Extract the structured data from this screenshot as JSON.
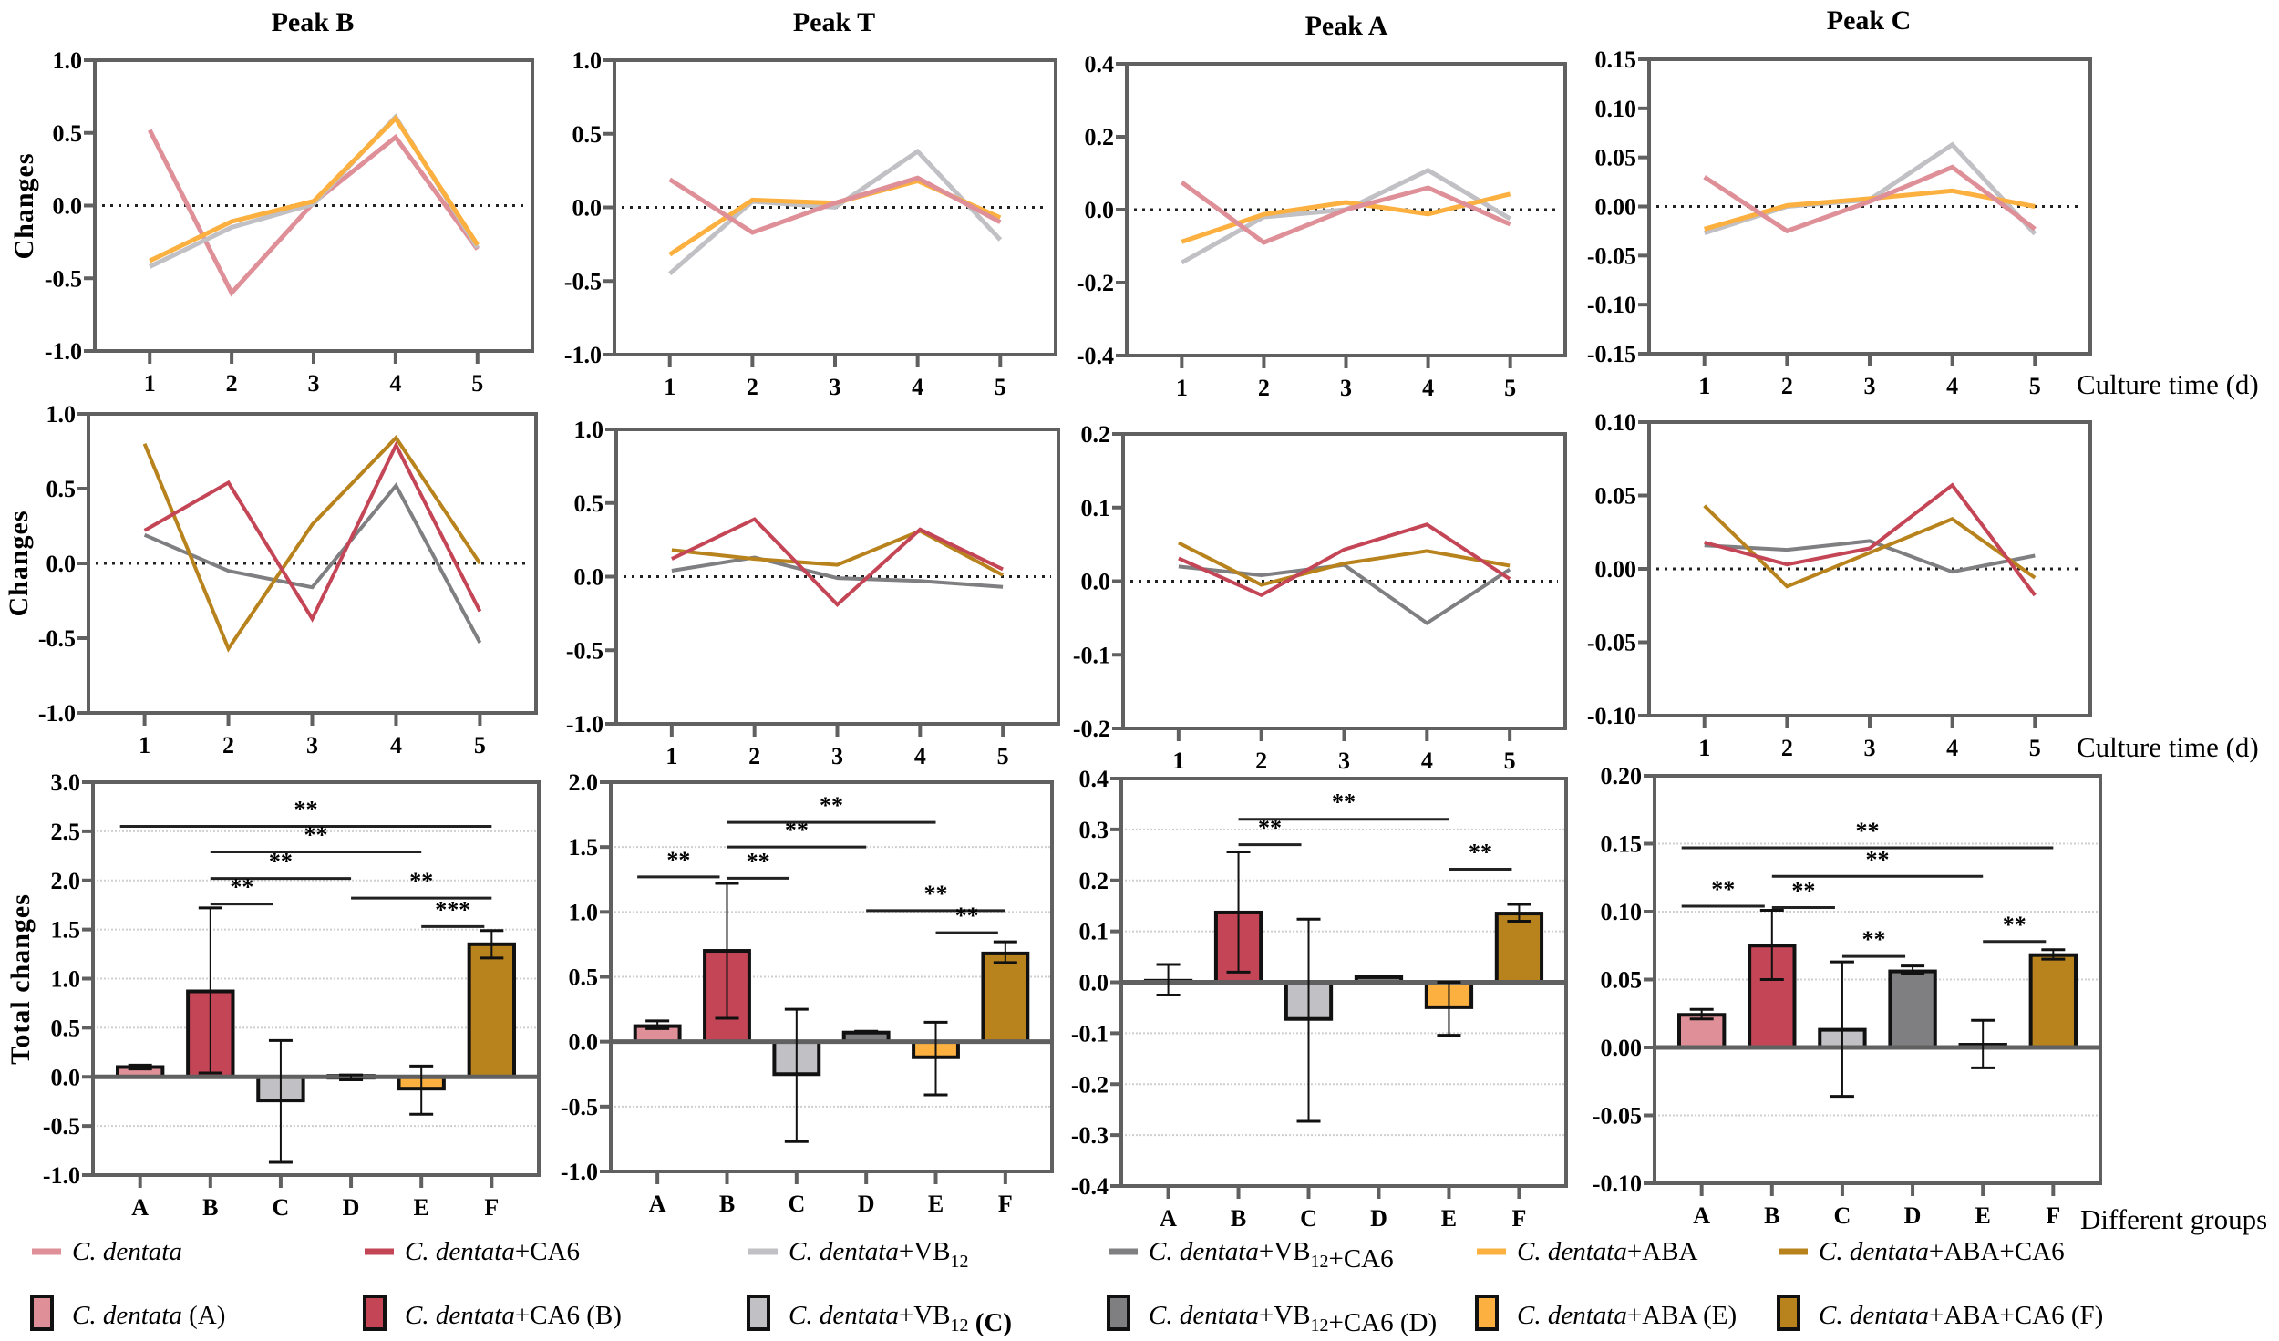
{
  "colors": {
    "C. dentata": "#DE8F97",
    "C. dentata+CA6": "#C44556",
    "C. dentata+VB12": "#C0C0C5",
    "C. dentata+VB12+CA6": "#7F7F82",
    "C. dentata+ABA": "#FBB040",
    "C. dentata+ABA+CA6": "#B8821C",
    "axis": "#606060"
  },
  "labels": {
    "peak_titles": [
      "Peak B",
      "Peak T",
      "Peak A",
      "Peak C"
    ],
    "changes": "Changes",
    "total_changes": "Total changes",
    "culture_time": "Culture time (d)",
    "different_groups": "Different groups"
  },
  "legend": {
    "lines": [
      {
        "italic": "C. dentata",
        "parts": [],
        "color": "#DE8F97"
      },
      {
        "italic": "C. dentata",
        "parts": [
          [
            "+CA6",
            ""
          ]
        ],
        "color": "#C44556"
      },
      {
        "italic": "C. dentata",
        "parts": [
          [
            "+VB",
            "12"
          ]
        ],
        "color": "#C0C0C5"
      },
      {
        "italic": "C. dentata",
        "parts": [
          [
            "+VB",
            "12"
          ],
          [
            "+CA6",
            ""
          ]
        ],
        "color": "#7F7F82"
      },
      {
        "italic": "C. dentata",
        "parts": [
          [
            "+ABA",
            ""
          ]
        ],
        "color": "#FBB040"
      },
      {
        "italic": "C. dentata",
        "parts": [
          [
            "+ABA+CA6",
            ""
          ]
        ],
        "color": "#B8821C"
      }
    ],
    "bars": [
      {
        "italic": "C. dentata",
        "parts": [
          [
            " (A)",
            ""
          ]
        ],
        "color": "#DE8F97"
      },
      {
        "italic": "C. dentata",
        "parts": [
          [
            "+CA6 (B)",
            ""
          ]
        ],
        "color": "#C44556"
      },
      {
        "italic": "C. dentata",
        "parts": [
          [
            "+VB",
            "12"
          ],
          [
            " (C)",
            ""
          ]
        ],
        "color": "#C0C0C5",
        "bold_suffix": true
      },
      {
        "italic": "C. dentata",
        "parts": [
          [
            "+VB",
            "12"
          ],
          [
            "+CA6 (D)",
            ""
          ]
        ],
        "color": "#7F7F82"
      },
      {
        "italic": "C. dentata",
        "parts": [
          [
            "+ABA (E)",
            ""
          ]
        ],
        "color": "#FBB040"
      },
      {
        "italic": "C. dentata",
        "parts": [
          [
            "+ABA+CA6 (F)",
            ""
          ]
        ],
        "color": "#B8821C"
      }
    ]
  },
  "chart_data": [
    {
      "type": "line",
      "title": "Peak B",
      "ylabel": "Changes",
      "x": [
        1,
        2,
        3,
        4,
        5
      ],
      "ylim": [
        -1,
        1
      ],
      "yticks": [
        "-1.0",
        "-0.5",
        "0.0",
        "0.5",
        "1.0"
      ],
      "ytick_values": [
        -1,
        -0.5,
        0,
        0.5,
        1
      ],
      "series": [
        {
          "name": "C. dentata",
          "color": "#DE8F97",
          "values": [
            0.52,
            -0.6,
            0.02,
            0.47,
            -0.3
          ]
        },
        {
          "name": "C. dentata+VB12",
          "color": "#C0C0C5",
          "values": [
            -0.42,
            -0.15,
            0.01,
            0.61,
            -0.29
          ]
        },
        {
          "name": "C. dentata+ABA",
          "color": "#FBB040",
          "values": [
            -0.38,
            -0.11,
            0.03,
            0.6,
            -0.27
          ]
        }
      ]
    },
    {
      "type": "line",
      "title": "Peak T",
      "x": [
        1,
        2,
        3,
        4,
        5
      ],
      "ylim": [
        -1,
        1
      ],
      "yticks": [
        "-1.0",
        "-0.5",
        "0.0",
        "0.5",
        "1.0"
      ],
      "ytick_values": [
        -1,
        -0.5,
        0,
        0.5,
        1
      ],
      "series": [
        {
          "name": "C. dentata+VB12",
          "color": "#C0C0C5",
          "values": [
            -0.45,
            0.04,
            0.0,
            0.38,
            -0.22
          ]
        },
        {
          "name": "C. dentata+ABA",
          "color": "#FBB040",
          "values": [
            -0.32,
            0.05,
            0.03,
            0.18,
            -0.07
          ]
        },
        {
          "name": "C. dentata",
          "color": "#DE8F97",
          "values": [
            0.19,
            -0.17,
            0.03,
            0.2,
            -0.1
          ]
        }
      ]
    },
    {
      "type": "line",
      "title": "Peak A",
      "x": [
        1,
        2,
        3,
        4,
        5
      ],
      "ylim": [
        -0.4,
        0.4
      ],
      "yticks": [
        "-0.4",
        "-0.2",
        "0.0",
        "0.2",
        "0.4"
      ],
      "ytick_values": [
        -0.4,
        -0.2,
        0,
        0.2,
        0.4
      ],
      "series": [
        {
          "name": "C. dentata+VB12",
          "color": "#C0C0C5",
          "values": [
            -0.145,
            -0.02,
            0.0,
            0.108,
            -0.025
          ]
        },
        {
          "name": "C. dentata+ABA",
          "color": "#FBB040",
          "values": [
            -0.088,
            -0.013,
            0.02,
            -0.012,
            0.043
          ]
        },
        {
          "name": "C. dentata",
          "color": "#DE8F97",
          "values": [
            0.075,
            -0.09,
            0.0,
            0.06,
            -0.04
          ]
        }
      ]
    },
    {
      "type": "line",
      "title": "Peak C",
      "xlabel": "Culture time (d)",
      "x": [
        1,
        2,
        3,
        4,
        5
      ],
      "ylim": [
        -0.15,
        0.15
      ],
      "yticks": [
        "-0.15",
        "-0.10",
        "-0.05",
        "0.00",
        "0.05",
        "0.10",
        "0.15"
      ],
      "ytick_values": [
        -0.15,
        -0.1,
        -0.05,
        0,
        0.05,
        0.1,
        0.15
      ],
      "series": [
        {
          "name": "C. dentata+VB12",
          "color": "#C0C0C5",
          "values": [
            -0.027,
            0.0,
            0.007,
            0.063,
            -0.028
          ]
        },
        {
          "name": "C. dentata+ABA",
          "color": "#FBB040",
          "values": [
            -0.023,
            0.001,
            0.008,
            0.016,
            0.0
          ]
        },
        {
          "name": "C. dentata",
          "color": "#DE8F97",
          "values": [
            0.03,
            -0.025,
            0.005,
            0.04,
            -0.023
          ]
        }
      ]
    },
    {
      "type": "line",
      "ylabel": "Changes",
      "x": [
        1,
        2,
        3,
        4,
        5
      ],
      "ylim": [
        -1,
        1
      ],
      "yticks": [
        "-1.0",
        "-0.5",
        "0.0",
        "0.5",
        "1.0"
      ],
      "ytick_values": [
        -1,
        -0.5,
        0,
        0.5,
        1
      ],
      "series": [
        {
          "name": "C. dentata+VB12+CA6",
          "color": "#7F7F82",
          "values": [
            0.19,
            -0.05,
            -0.16,
            0.52,
            -0.53
          ]
        },
        {
          "name": "C. dentata+ABA+CA6",
          "color": "#B8821C",
          "values": [
            0.8,
            -0.57,
            0.26,
            0.84,
            0.0
          ]
        },
        {
          "name": "C. dentata+CA6",
          "color": "#C44556",
          "values": [
            0.22,
            0.54,
            -0.37,
            0.79,
            -0.32
          ]
        }
      ]
    },
    {
      "type": "line",
      "x": [
        1,
        2,
        3,
        4,
        5
      ],
      "ylim": [
        -1,
        1
      ],
      "yticks": [
        "-1.0",
        "-0.5",
        "0.0",
        "0.5",
        "1.0"
      ],
      "ytick_values": [
        -1,
        -0.5,
        0,
        0.5,
        1
      ],
      "series": [
        {
          "name": "C. dentata+VB12+CA6",
          "color": "#7F7F82",
          "values": [
            0.04,
            0.13,
            -0.01,
            -0.03,
            -0.07
          ]
        },
        {
          "name": "C. dentata+ABA+CA6",
          "color": "#B8821C",
          "values": [
            0.18,
            0.12,
            0.08,
            0.31,
            0.01
          ]
        },
        {
          "name": "C. dentata+CA6",
          "color": "#C44556",
          "values": [
            0.12,
            0.39,
            -0.19,
            0.32,
            0.05
          ]
        }
      ]
    },
    {
      "type": "line",
      "x": [
        1,
        2,
        3,
        4,
        5
      ],
      "ylim": [
        -0.2,
        0.2
      ],
      "yticks": [
        "-0.2",
        "-0.1",
        "0.0",
        "0.1",
        "0.2"
      ],
      "ytick_values": [
        -0.2,
        -0.1,
        0,
        0.1,
        0.2
      ],
      "series": [
        {
          "name": "C. dentata+VB12+CA6",
          "color": "#7F7F82",
          "values": [
            0.02,
            0.008,
            0.022,
            -0.057,
            0.016
          ]
        },
        {
          "name": "C. dentata+ABA+CA6",
          "color": "#B8821C",
          "values": [
            0.052,
            -0.005,
            0.024,
            0.041,
            0.021
          ]
        },
        {
          "name": "C. dentata+CA6",
          "color": "#C44556",
          "values": [
            0.031,
            -0.019,
            0.043,
            0.077,
            0.003
          ]
        }
      ]
    },
    {
      "type": "line",
      "xlabel": "Culture time (d)",
      "x": [
        1,
        2,
        3,
        4,
        5
      ],
      "ylim": [
        -0.1,
        0.1
      ],
      "yticks": [
        "-0.10",
        "-0.05",
        "0.00",
        "0.05",
        "0.10"
      ],
      "ytick_values": [
        -0.1,
        -0.05,
        0,
        0.05,
        0.1
      ],
      "series": [
        {
          "name": "C. dentata+VB12+CA6",
          "color": "#7F7F82",
          "values": [
            0.016,
            0.013,
            0.019,
            -0.002,
            0.009
          ]
        },
        {
          "name": "C. dentata+ABA+CA6",
          "color": "#B8821C",
          "values": [
            0.043,
            -0.012,
            0.011,
            0.034,
            -0.006
          ]
        },
        {
          "name": "C. dentata+CA6",
          "color": "#C44556",
          "values": [
            0.018,
            0.003,
            0.014,
            0.057,
            -0.018
          ]
        }
      ]
    },
    {
      "type": "bar",
      "ylabel": "Total changes",
      "categories": [
        "A",
        "B",
        "C",
        "D",
        "E",
        "F"
      ],
      "ylim": [
        -1,
        3
      ],
      "yticks": [
        "-1.0",
        "-0.5",
        "0.0",
        "0.5",
        "1.0",
        "1.5",
        "2.0",
        "2.5",
        "3.0"
      ],
      "ytick_values": [
        -1,
        -0.5,
        0,
        0.5,
        1,
        1.5,
        2,
        2.5,
        3
      ],
      "values": [
        0.1,
        0.87,
        -0.24,
        0.01,
        -0.12,
        1.35
      ],
      "error_low": [
        0.08,
        0.04,
        -0.87,
        -0.03,
        -0.38,
        1.21
      ],
      "error_high": [
        0.12,
        1.72,
        0.37,
        0.02,
        0.11,
        1.49
      ],
      "significance": [
        {
          "from": "A",
          "to": "F",
          "y": 2.55,
          "label": "**"
        },
        {
          "from": "B",
          "to": "E",
          "y": 2.29,
          "label": "**"
        },
        {
          "from": "B",
          "to": "D",
          "y": 2.02,
          "label": "**"
        },
        {
          "from": "B",
          "to": "C",
          "y": 1.76,
          "label": "**"
        },
        {
          "from": "D",
          "to": "F",
          "y": 1.82,
          "label": "**"
        },
        {
          "from": "E",
          "to": "F",
          "y": 1.53,
          "label": "***"
        }
      ]
    },
    {
      "type": "bar",
      "categories": [
        "A",
        "B",
        "C",
        "D",
        "E",
        "F"
      ],
      "ylim": [
        -1,
        2
      ],
      "yticks": [
        "-1.0",
        "-0.5",
        "0.0",
        "0.5",
        "1.0",
        "1.5",
        "2.0"
      ],
      "ytick_values": [
        -1,
        -0.5,
        0,
        0.5,
        1,
        1.5,
        2
      ],
      "values": [
        0.12,
        0.7,
        -0.25,
        0.07,
        -0.12,
        0.68
      ],
      "error_low": [
        0.1,
        0.18,
        -0.77,
        0.07,
        -0.41,
        0.61
      ],
      "error_high": [
        0.16,
        1.22,
        0.25,
        0.08,
        0.15,
        0.77
      ],
      "significance": [
        {
          "from": "A",
          "to": "B",
          "y": 1.27,
          "label": "**"
        },
        {
          "from": "B",
          "to": "C",
          "y": 1.26,
          "label": "**"
        },
        {
          "from": "B",
          "to": "D",
          "y": 1.5,
          "label": "**"
        },
        {
          "from": "B",
          "to": "E",
          "y": 1.69,
          "label": "**"
        },
        {
          "from": "D",
          "to": "F",
          "y": 1.01,
          "label": "**"
        },
        {
          "from": "E",
          "to": "F",
          "y": 0.84,
          "label": "**"
        }
      ]
    },
    {
      "type": "bar",
      "categories": [
        "A",
        "B",
        "C",
        "D",
        "E",
        "F"
      ],
      "ylim": [
        -0.4,
        0.4
      ],
      "yticks": [
        "-0.4",
        "-0.3",
        "-0.2",
        "-0.1",
        "0.0",
        "0.1",
        "0.2",
        "0.3",
        "0.4"
      ],
      "ytick_values": [
        -0.4,
        -0.3,
        -0.2,
        -0.1,
        0,
        0.1,
        0.2,
        0.3,
        0.4
      ],
      "values": [
        0.003,
        0.137,
        -0.072,
        0.01,
        -0.049,
        0.135
      ],
      "error_low": [
        -0.025,
        0.02,
        -0.273,
        0.01,
        -0.104,
        0.12
      ],
      "error_high": [
        0.035,
        0.256,
        0.124,
        0.012,
        0.0,
        0.153
      ],
      "significance": [
        {
          "from": "B",
          "to": "C",
          "y": 0.27,
          "label": "**"
        },
        {
          "from": "B",
          "to": "E",
          "y": 0.32,
          "label": "**"
        },
        {
          "from": "E",
          "to": "F",
          "y": 0.222,
          "label": "**"
        }
      ]
    },
    {
      "type": "bar",
      "xlabel": "Different groups",
      "categories": [
        "A",
        "B",
        "C",
        "D",
        "E",
        "F"
      ],
      "ylim": [
        -0.1,
        0.2
      ],
      "yticks": [
        "-0.10",
        "-0.05",
        "0.00",
        "0.05",
        "0.10",
        "0.15",
        "0.20"
      ],
      "ytick_values": [
        -0.1,
        -0.05,
        0,
        0.05,
        0.1,
        0.15,
        0.2
      ],
      "values": [
        0.024,
        0.075,
        0.013,
        0.056,
        0.002,
        0.068
      ],
      "error_low": [
        0.021,
        0.05,
        -0.036,
        0.054,
        -0.015,
        0.065
      ],
      "error_high": [
        0.028,
        0.101,
        0.063,
        0.06,
        0.02,
        0.072
      ],
      "significance": [
        {
          "from": "A",
          "to": "F",
          "y": 0.147,
          "label": "**"
        },
        {
          "from": "B",
          "to": "E",
          "y": 0.126,
          "label": "**"
        },
        {
          "from": "A",
          "to": "B",
          "y": 0.104,
          "label": "**"
        },
        {
          "from": "B",
          "to": "C",
          "y": 0.103,
          "label": "**"
        },
        {
          "from": "C",
          "to": "D",
          "y": 0.067,
          "label": "**"
        },
        {
          "from": "E",
          "to": "F",
          "y": 0.078,
          "label": "**"
        }
      ]
    }
  ]
}
